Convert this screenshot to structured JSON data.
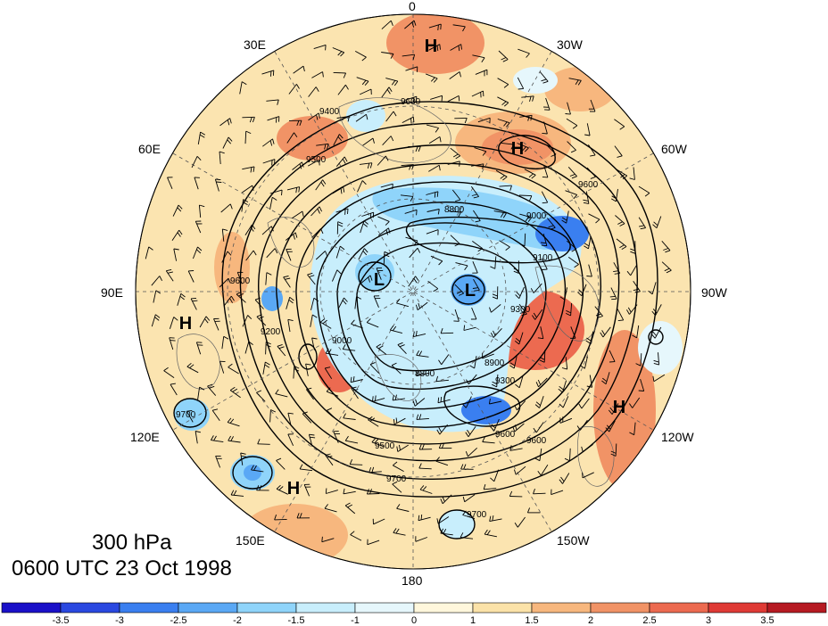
{
  "map": {
    "projection": "north polar stereographic",
    "longitude_labels": {
      "n0": "0",
      "e30": "30E",
      "w30": "30W",
      "e60": "60E",
      "w60": "60W",
      "e90": "90E",
      "w90": "90W",
      "e120": "120E",
      "w120": "120W",
      "e150": "150E",
      "w150": "150W",
      "s180": "180"
    },
    "contour_labels": [
      "9600",
      "9400",
      "9500",
      "8800",
      "9000",
      "9100",
      "9300",
      "9200",
      "8900",
      "9700",
      "8800",
      "9600",
      "9500",
      "9000",
      "9300",
      "9600",
      "9700",
      "9700",
      "9600",
      "9600"
    ],
    "pressure_systems": [
      "H",
      "H",
      "H",
      "H",
      "H",
      "L",
      "L"
    ]
  },
  "title": {
    "level": "300 hPa",
    "datetime": "0600 UTC 23 Oct 1998"
  },
  "colorbar": {
    "colors": [
      "#1a10c8",
      "#2a48e0",
      "#3a7ff0",
      "#5aa8f5",
      "#8fd4fa",
      "#c8eefc",
      "#e6f7fc",
      "#fff7dc",
      "#fbe2a8",
      "#f7b77e",
      "#f19366",
      "#ec6a50",
      "#df3a35",
      "#b61a22"
    ],
    "ticks": [
      "-3.5",
      "-3",
      "-2.5",
      "-2",
      "-1.5",
      "-1",
      "0",
      "1",
      "1.5",
      "2",
      "2.5",
      "3",
      "3.5"
    ]
  }
}
